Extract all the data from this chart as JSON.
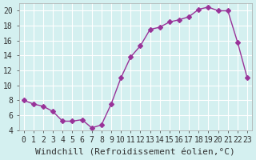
{
  "x": [
    0,
    1,
    2,
    3,
    4,
    5,
    6,
    7,
    8,
    9,
    10,
    11,
    12,
    13,
    14,
    15,
    16,
    17,
    18,
    19,
    20,
    21,
    22,
    23
  ],
  "y": [
    8.0,
    7.5,
    7.2,
    6.5,
    5.2,
    5.2,
    5.4,
    4.3,
    4.7,
    7.5,
    11.0,
    13.8,
    15.3,
    17.5,
    17.8,
    18.5,
    18.8,
    19.2,
    20.2,
    20.5,
    20.0,
    20.0,
    15.8,
    11.0
  ],
  "xlim": [
    -0.5,
    23.5
  ],
  "ylim": [
    4,
    21
  ],
  "yticks": [
    4,
    6,
    8,
    10,
    12,
    14,
    16,
    18,
    20
  ],
  "xticks": [
    0,
    1,
    2,
    3,
    4,
    5,
    6,
    7,
    8,
    9,
    10,
    11,
    12,
    13,
    14,
    15,
    16,
    17,
    18,
    19,
    20,
    21,
    22,
    23
  ],
  "xlabel": "Windchill (Refroidissement éolien,°C)",
  "line_color": "#993399",
  "marker": "D",
  "marker_size": 3,
  "bg_color": "#d4f0f0",
  "grid_color": "#ffffff",
  "tick_label_fontsize": 7,
  "xlabel_fontsize": 8
}
